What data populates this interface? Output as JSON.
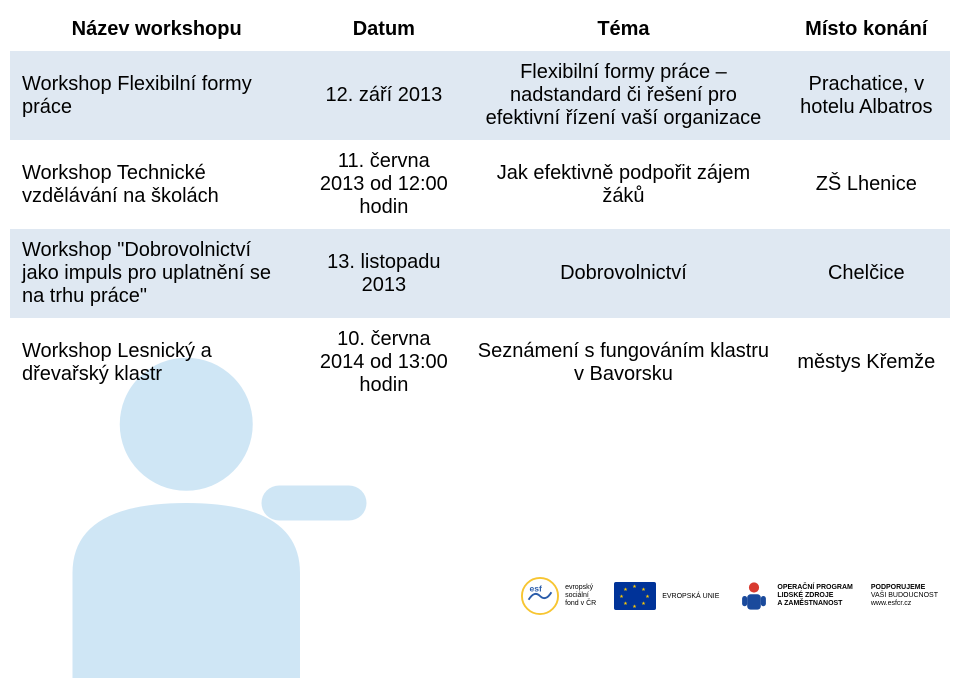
{
  "table": {
    "headers": [
      "Název workshopu",
      "Datum",
      "Téma",
      "Místo konání"
    ],
    "rows": [
      {
        "name": "Workshop Flexibilní formy práce",
        "date": "12. září 2013",
        "topic": "Flexibilní formy práce – nadstandard či řešení pro efektivní řízení vaší organizace",
        "place": "Prachatice, v hotelu Albatros"
      },
      {
        "name": "Workshop Technické vzdělávání na školách",
        "date": "11. června 2013 od 12:00 hodin",
        "topic": "Jak efektivně podpořit zájem žáků",
        "place": "ZŠ Lhenice"
      },
      {
        "name": "Workshop \"Dobrovolnictví jako impuls pro uplatnění se na trhu práce\"",
        "date": "13. listopadu 2013",
        "topic": "Dobrovolnictví",
        "place": "Chelčice"
      },
      {
        "name": "Workshop Lesnický a dřevařský klastr",
        "date": "10. června 2014 od 13:00 hodin",
        "topic": "Seznámení s fungováním klastru v Bavorsku",
        "place": "městys Křemže"
      }
    ]
  },
  "footer": {
    "esf_lines": "evropský\nsociální\nfond v ČR",
    "eu_label": "EVROPSKÁ UNIE",
    "oplzz_lines": "OPERAČNÍ PROGRAM\nLIDSKÉ ZDROJE\nA ZAMĚSTNANOST",
    "support_title": "PODPORUJEME",
    "support_sub": "VAŠI BUDOUCNOST",
    "support_url": "www.esfcr.cz"
  },
  "colors": {
    "row_shade": "#dbe5f1",
    "bg_shape": "#cfe6f5",
    "eu_blue": "#003399",
    "eu_gold": "#ffcc00",
    "esf_yellow": "#f7c531",
    "esf_blue": "#2a5caa",
    "oplzz_head": "#d83a2f",
    "oplzz_body": "#1a4a9c"
  }
}
